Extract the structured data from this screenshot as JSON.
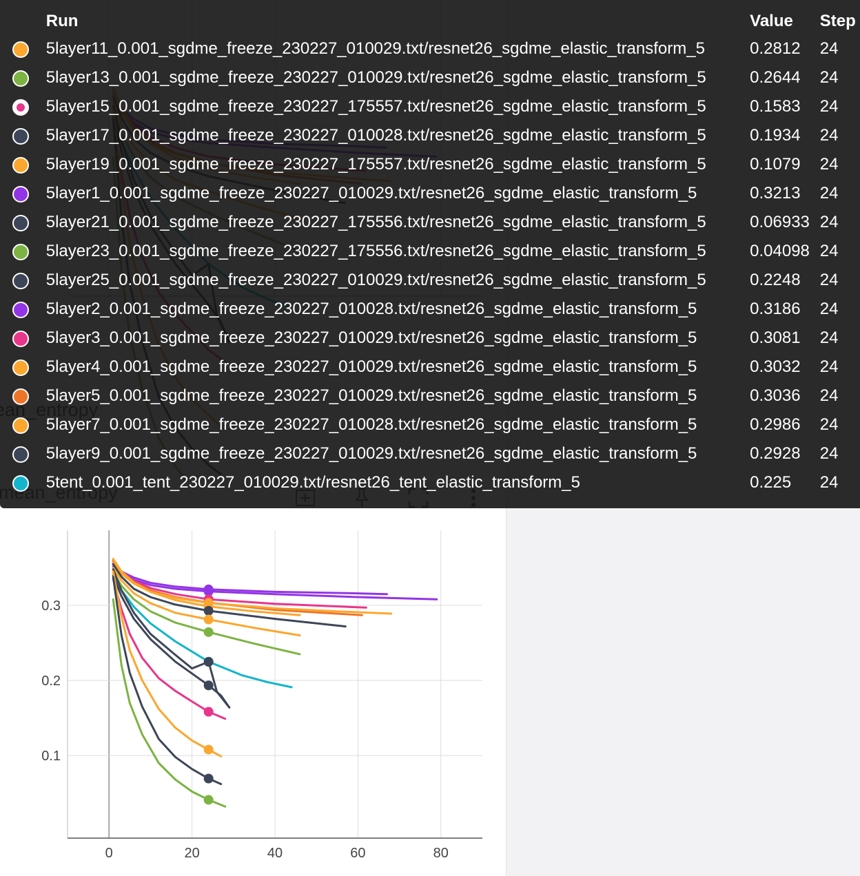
{
  "chart": {
    "title": "mean_entropy",
    "background_title": "ean_entropy",
    "toolbar": [
      "fit-domain-icon",
      "pin-icon",
      "fullscreen-icon",
      "more-vert-icon"
    ]
  },
  "tooltip": {
    "headers": {
      "run": "Run",
      "value": "Value",
      "step": "Step"
    },
    "rows": [
      {
        "run": "5layer11_0.001_sgdme_freeze_230227_010029.txt/resnet26_sgdme_elastic_transform_5",
        "value": "0.2812",
        "step": "24",
        "color": "#fba72f"
      },
      {
        "run": "5layer13_0.001_sgdme_freeze_230227_010029.txt/resnet26_sgdme_elastic_transform_5",
        "value": "0.2644",
        "step": "24",
        "color": "#7cb342"
      },
      {
        "run": "5layer15_0.001_sgdme_freeze_230227_175557.txt/resnet26_sgdme_elastic_transform_5",
        "value": "0.1583",
        "step": "24",
        "color": "#e8368b",
        "selected": true
      },
      {
        "run": "5layer17_0.001_sgdme_freeze_230227_010028.txt/resnet26_sgdme_elastic_transform_5",
        "value": "0.1934",
        "step": "24",
        "color": "#3d4658"
      },
      {
        "run": "5layer19_0.001_sgdme_freeze_230227_175557.txt/resnet26_sgdme_elastic_transform_5",
        "value": "0.1079",
        "step": "24",
        "color": "#fba72f"
      },
      {
        "run": "5layer1_0.001_sgdme_freeze_230227_010029.txt/resnet26_sgdme_elastic_transform_5",
        "value": "0.3213",
        "step": "24",
        "color": "#9334e6"
      },
      {
        "run": "5layer21_0.001_sgdme_freeze_230227_175556.txt/resnet26_sgdme_elastic_transform_5",
        "value": "0.06933",
        "step": "24",
        "color": "#3d4658"
      },
      {
        "run": "5layer23_0.001_sgdme_freeze_230227_175556.txt/resnet26_sgdme_elastic_transform_5",
        "value": "0.04098",
        "step": "24",
        "color": "#7cb342"
      },
      {
        "run": "5layer25_0.001_sgdme_freeze_230227_010029.txt/resnet26_sgdme_elastic_transform_5",
        "value": "0.2248",
        "step": "24",
        "color": "#3d4658"
      },
      {
        "run": "5layer2_0.001_sgdme_freeze_230227_010028.txt/resnet26_sgdme_elastic_transform_5",
        "value": "0.3186",
        "step": "24",
        "color": "#9334e6"
      },
      {
        "run": "5layer3_0.001_sgdme_freeze_230227_010029.txt/resnet26_sgdme_elastic_transform_5",
        "value": "0.3081",
        "step": "24",
        "color": "#e8368b"
      },
      {
        "run": "5layer4_0.001_sgdme_freeze_230227_010029.txt/resnet26_sgdme_elastic_transform_5",
        "value": "0.3032",
        "step": "24",
        "color": "#fba72f"
      },
      {
        "run": "5layer5_0.001_sgdme_freeze_230227_010029.txt/resnet26_sgdme_elastic_transform_5",
        "value": "0.3036",
        "step": "24",
        "color": "#ee7528"
      },
      {
        "run": "5layer7_0.001_sgdme_freeze_230227_010028.txt/resnet26_sgdme_elastic_transform_5",
        "value": "0.2986",
        "step": "24",
        "color": "#fba72f"
      },
      {
        "run": "5layer9_0.001_sgdme_freeze_230227_010029.txt/resnet26_sgdme_elastic_transform_5",
        "value": "0.2928",
        "step": "24",
        "color": "#3d4658"
      },
      {
        "run": "5tent_0.001_tent_230227_010029.txt/resnet26_tent_elastic_transform_5",
        "value": "0.225",
        "step": "24",
        "color": "#12b5cb"
      }
    ]
  },
  "chart_data": {
    "type": "line",
    "title": "mean_entropy",
    "xlabel": "",
    "ylabel": "",
    "xlim": [
      -10,
      90
    ],
    "ylim": [
      -0.01,
      0.4
    ],
    "xticks": [
      0,
      20,
      40,
      60,
      80
    ],
    "yticks": [
      0.1,
      0.2,
      0.3
    ],
    "ytick_labels": [
      "0.1",
      "0.2",
      "0.3"
    ],
    "grid": true,
    "highlight_step": 24,
    "series": [
      {
        "name": "5layer1_0.001_sgdme_freeze_230227_010029.txt/resnet26_sgdme_elastic_transform_5",
        "color": "#9334e6",
        "points": [
          [
            1,
            0.355
          ],
          [
            3,
            0.345
          ],
          [
            6,
            0.337
          ],
          [
            10,
            0.33
          ],
          [
            16,
            0.325
          ],
          [
            24,
            0.3213
          ],
          [
            40,
            0.318
          ],
          [
            60,
            0.316
          ],
          [
            67,
            0.315
          ]
        ]
      },
      {
        "name": "5layer2_0.001_sgdme_freeze_230227_010028.txt/resnet26_sgdme_elastic_transform_5",
        "color": "#9334e6",
        "points": [
          [
            1,
            0.352
          ],
          [
            3,
            0.343
          ],
          [
            6,
            0.334
          ],
          [
            10,
            0.327
          ],
          [
            16,
            0.322
          ],
          [
            24,
            0.3186
          ],
          [
            40,
            0.315
          ],
          [
            60,
            0.311
          ],
          [
            79,
            0.308
          ]
        ]
      },
      {
        "name": "5layer3_0.001_sgdme_freeze_230227_010029.txt/resnet26_sgdme_elastic_transform_5",
        "color": "#e8368b",
        "points": [
          [
            1,
            0.358
          ],
          [
            3,
            0.345
          ],
          [
            6,
            0.333
          ],
          [
            10,
            0.323
          ],
          [
            16,
            0.315
          ],
          [
            24,
            0.3081
          ],
          [
            40,
            0.302
          ],
          [
            62,
            0.297
          ]
        ]
      },
      {
        "name": "5layer5_0.001_sgdme_freeze_230227_010029.txt/resnet26_sgdme_elastic_transform_5",
        "color": "#ee7528",
        "points": [
          [
            1,
            0.36
          ],
          [
            3,
            0.345
          ],
          [
            6,
            0.331
          ],
          [
            10,
            0.32
          ],
          [
            16,
            0.311
          ],
          [
            24,
            0.3036
          ],
          [
            40,
            0.294
          ],
          [
            61,
            0.287
          ]
        ]
      },
      {
        "name": "5layer4_0.001_sgdme_freeze_230227_010029.txt/resnet26_sgdme_elastic_transform_5",
        "color": "#fba72f",
        "points": [
          [
            1,
            0.357
          ],
          [
            3,
            0.342
          ],
          [
            6,
            0.329
          ],
          [
            10,
            0.318
          ],
          [
            16,
            0.31
          ],
          [
            24,
            0.3032
          ],
          [
            40,
            0.296
          ],
          [
            55,
            0.292
          ],
          [
            68,
            0.289
          ]
        ]
      },
      {
        "name": "5layer7_0.001_sgdme_freeze_230227_010028.txt/resnet26_sgdme_elastic_transform_5",
        "color": "#fba72f",
        "points": [
          [
            1,
            0.362
          ],
          [
            3,
            0.345
          ],
          [
            6,
            0.33
          ],
          [
            10,
            0.318
          ],
          [
            16,
            0.307
          ],
          [
            24,
            0.2986
          ],
          [
            35,
            0.292
          ],
          [
            46,
            0.287
          ]
        ]
      },
      {
        "name": "5layer9_0.001_sgdme_freeze_230227_010029.txt/resnet26_sgdme_elastic_transform_5",
        "color": "#3d4658",
        "points": [
          [
            1,
            0.355
          ],
          [
            3,
            0.338
          ],
          [
            6,
            0.322
          ],
          [
            10,
            0.311
          ],
          [
            16,
            0.301
          ],
          [
            24,
            0.2928
          ],
          [
            40,
            0.282
          ],
          [
            57,
            0.272
          ]
        ]
      },
      {
        "name": "5layer11_0.001_sgdme_freeze_230227_010029.txt/resnet26_sgdme_elastic_transform_5",
        "color": "#fba72f",
        "points": [
          [
            1,
            0.35
          ],
          [
            3,
            0.333
          ],
          [
            6,
            0.316
          ],
          [
            10,
            0.303
          ],
          [
            16,
            0.29
          ],
          [
            24,
            0.2812
          ],
          [
            35,
            0.27
          ],
          [
            46,
            0.26
          ]
        ]
      },
      {
        "name": "5layer13_0.001_sgdme_freeze_230227_010029.txt/resnet26_sgdme_elastic_transform_5",
        "color": "#7cb342",
        "points": [
          [
            1,
            0.345
          ],
          [
            3,
            0.326
          ],
          [
            6,
            0.308
          ],
          [
            10,
            0.292
          ],
          [
            16,
            0.277
          ],
          [
            24,
            0.2644
          ],
          [
            35,
            0.249
          ],
          [
            46,
            0.235
          ]
        ]
      },
      {
        "name": "5tent_0.001_tent_230227_010029.txt/resnet26_tent_elastic_transform_5",
        "color": "#12b5cb",
        "points": [
          [
            1,
            0.34
          ],
          [
            3,
            0.32
          ],
          [
            6,
            0.298
          ],
          [
            10,
            0.276
          ],
          [
            16,
            0.252
          ],
          [
            24,
            0.225
          ],
          [
            32,
            0.207
          ],
          [
            38,
            0.198
          ],
          [
            44,
            0.191
          ]
        ]
      },
      {
        "name": "5layer25_0.001_sgdme_freeze_230227_010029.txt/resnet26_sgdme_elastic_transform_5",
        "color": "#3d4658",
        "points": [
          [
            1,
            0.348
          ],
          [
            3,
            0.32
          ],
          [
            6,
            0.29
          ],
          [
            10,
            0.262
          ],
          [
            16,
            0.234
          ],
          [
            20,
            0.216
          ],
          [
            24,
            0.2248
          ],
          [
            26,
            0.185
          ],
          [
            29,
            0.164
          ]
        ]
      },
      {
        "name": "5layer17_0.001_sgdme_freeze_230227_010028.txt/resnet26_sgdme_elastic_transform_5",
        "color": "#3d4658",
        "points": [
          [
            1,
            0.34
          ],
          [
            3,
            0.312
          ],
          [
            6,
            0.282
          ],
          [
            10,
            0.255
          ],
          [
            16,
            0.225
          ],
          [
            24,
            0.1934
          ],
          [
            27,
            0.18
          ],
          [
            29,
            0.164
          ]
        ]
      },
      {
        "name": "5layer15_0.001_sgdme_freeze_230227_175557.txt/resnet26_sgdme_elastic_transform_5",
        "color": "#e8368b",
        "points": [
          [
            1,
            0.335
          ],
          [
            3,
            0.295
          ],
          [
            5,
            0.262
          ],
          [
            8,
            0.23
          ],
          [
            12,
            0.203
          ],
          [
            16,
            0.186
          ],
          [
            20,
            0.172
          ],
          [
            24,
            0.1583
          ],
          [
            28,
            0.149
          ]
        ]
      },
      {
        "name": "5layer19_0.001_sgdme_freeze_230227_175557.txt/resnet26_sgdme_elastic_transform_5",
        "color": "#fba72f",
        "points": [
          [
            1,
            0.345
          ],
          [
            3,
            0.285
          ],
          [
            5,
            0.24
          ],
          [
            8,
            0.2
          ],
          [
            12,
            0.162
          ],
          [
            16,
            0.137
          ],
          [
            20,
            0.12
          ],
          [
            24,
            0.1079
          ],
          [
            27,
            0.099
          ]
        ]
      },
      {
        "name": "5layer21_0.001_sgdme_freeze_230227_175556.txt/resnet26_sgdme_elastic_transform_5",
        "color": "#3d4658",
        "points": [
          [
            1,
            0.338
          ],
          [
            3,
            0.26
          ],
          [
            5,
            0.21
          ],
          [
            8,
            0.165
          ],
          [
            12,
            0.122
          ],
          [
            16,
            0.098
          ],
          [
            20,
            0.082
          ],
          [
            24,
            0.06933
          ],
          [
            27,
            0.062
          ]
        ]
      },
      {
        "name": "5layer23_0.001_sgdme_freeze_230227_175556.txt/resnet26_sgdme_elastic_transform_5",
        "color": "#7cb342",
        "points": [
          [
            1,
            0.308
          ],
          [
            3,
            0.22
          ],
          [
            5,
            0.17
          ],
          [
            8,
            0.128
          ],
          [
            12,
            0.09
          ],
          [
            16,
            0.068
          ],
          [
            20,
            0.052
          ],
          [
            24,
            0.04098
          ],
          [
            28,
            0.032
          ]
        ]
      }
    ]
  }
}
